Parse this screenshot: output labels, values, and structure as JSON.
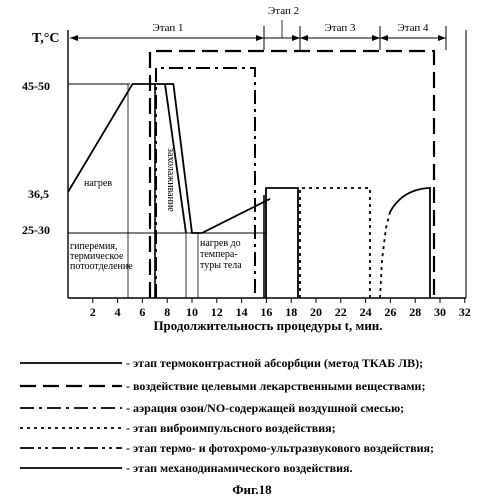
{
  "chart_data": {
    "type": "line",
    "ylabel": "T,°C",
    "xlabel": "Продолжительность процедуры  t, мин.",
    "caption": "Фиг.18",
    "x_ticks": [
      2,
      4,
      6,
      8,
      10,
      12,
      14,
      16,
      18,
      20,
      22,
      24,
      26,
      28,
      30,
      32
    ],
    "y_tick_labels": [
      "45-50",
      "36,5",
      "25-30"
    ],
    "stages": [
      {
        "label": "Этап 1",
        "start": 0,
        "end": 16.5
      },
      {
        "label": "Этап 2",
        "start": 16,
        "end": 19
      },
      {
        "label": "Этап 3",
        "start": 19,
        "end": 25.5
      },
      {
        "label": "Этап 4",
        "start": 25.5,
        "end": 31
      }
    ],
    "curve_points": [
      [
        0,
        36.5
      ],
      [
        5.2,
        47.5
      ],
      [
        7.3,
        47.5
      ],
      [
        8.5,
        47.5
      ],
      [
        10,
        27.5
      ],
      [
        10.8,
        27.5
      ],
      [
        16.3,
        35
      ]
    ],
    "annotations": {
      "heating": "нагрев",
      "cooling": "захолаживание",
      "heating_body": "нагрев до темпера-туры тела",
      "heating_body_l1": "нагрев до",
      "heating_body_l2": "темпера-",
      "heating_body_l3": "туры тела",
      "hyperemia_l1": "гиперемия,",
      "hyperemia_l2": "термическое",
      "hyperemia_l3": "потоотделение"
    },
    "legend": [
      {
        "style": "solid",
        "label": "- этап термоконтрастной абсорбции (метод ТКАБ ЛВ);"
      },
      {
        "style": "long-dash",
        "label": "- воздействие целевыми лекарственными веществами;"
      },
      {
        "style": "dash-dot",
        "label": "- аэрация озон/NO-содержащей воздушной смесью;"
      },
      {
        "style": "dotted",
        "label": "- этап виброимпульсного воздействия;"
      },
      {
        "style": "dash-dot-dot",
        "label": "- этап термо- и фотохромо-ультразвукового воздействия;"
      },
      {
        "style": "solid",
        "label": "- этап механодинамического воздействия."
      }
    ]
  }
}
